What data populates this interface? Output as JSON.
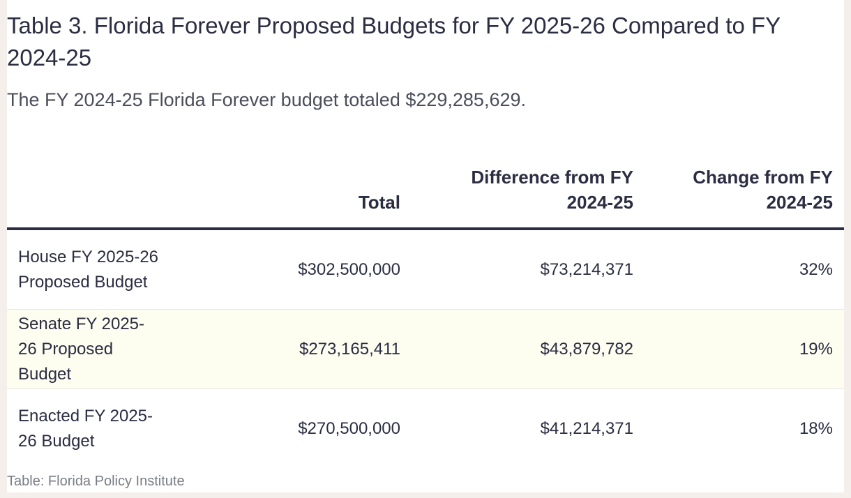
{
  "title": "Table 3.  Florida Forever Proposed Budgets for FY 2025-26 Compared to FY 2024-25",
  "subtitle": "The FY 2024-25 Florida Forever budget totaled $229,285,629.",
  "table": {
    "headers": [
      "",
      "Total",
      "Difference from FY 2024-25",
      "Change from FY 2024-25"
    ],
    "rows": [
      {
        "label": "House FY 2025-26 Proposed Budget",
        "total": "$302,500,000",
        "difference": "$73,214,371",
        "change": "32%"
      },
      {
        "label": "Senate FY 2025-26 Proposed Budget",
        "total": "$273,165,411",
        "difference": "$43,879,782",
        "change": "19%"
      },
      {
        "label": "Enacted FY 2025-26 Budget",
        "total": "$270,500,000",
        "difference": "$41,214,371",
        "change": "18%"
      }
    ]
  },
  "source": "Table: Florida Policy Institute",
  "colors": {
    "page_background": "#f5efec",
    "card_background": "#ffffff",
    "text": "#2b2d42",
    "shaded_row": "#fdfdf0",
    "source_text": "#7a7c86"
  }
}
